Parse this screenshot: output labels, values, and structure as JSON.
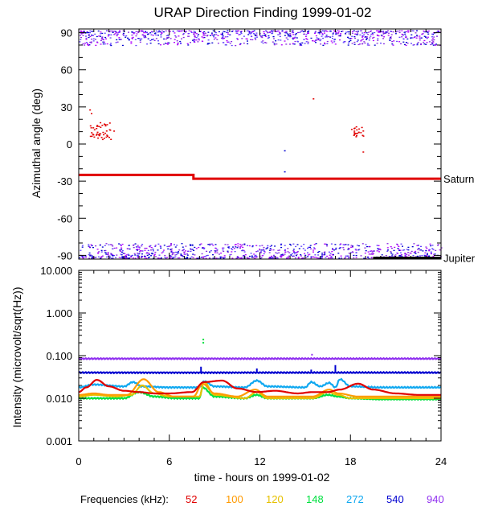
{
  "chart_data": [
    {
      "type": "scatter",
      "title": "URAP Direction Finding  1999-01-02",
      "ylabel": "Azimuthal angle (deg)",
      "xlim": [
        0,
        24
      ],
      "ylim": [
        -93,
        93
      ],
      "yticks": [
        90,
        60,
        30,
        0,
        -30,
        -60,
        -90
      ],
      "grid": false,
      "annotations": [
        {
          "label": "Saturn",
          "y": -28
        },
        {
          "label": "Jupiter",
          "y": -92
        }
      ],
      "series": [
        {
          "name": "Saturn",
          "color": "#e00000",
          "x": [
            0,
            7.6,
            7.6,
            24
          ],
          "y": [
            -25,
            -25,
            -28,
            -28
          ]
        },
        {
          "name": "Jupiter",
          "color": "#000000",
          "x": [
            19.5,
            24
          ],
          "y": [
            -92,
            -92
          ]
        },
        {
          "name": "",
          "color": "#8a2be2",
          "note": "dense scatter near +90 and -90, 0 to 24 h"
        },
        {
          "name": "",
          "color": "#e00000",
          "x": [
            0.8,
            1.0,
            1.2,
            1.4,
            1.6,
            1.8,
            2.0,
            18.2,
            18.5,
            18.8
          ],
          "y": [
            25,
            12,
            10,
            14,
            8,
            11,
            12,
            13,
            10,
            11
          ]
        }
      ]
    },
    {
      "type": "line",
      "ylabel": "Intensity (microvolt/sqrt(Hz))",
      "xlabel": "time - hours on 1999-01-02",
      "xlim": [
        0,
        24
      ],
      "xticks": [
        0,
        6,
        12,
        18,
        24
      ],
      "ylim": [
        0.001,
        10
      ],
      "yscale": "log",
      "yticks": [
        "10.000",
        "1.000",
        "0.100",
        "0.010",
        "0.001"
      ],
      "grid": false,
      "legend": {
        "title": "Frequencies (kHz):",
        "placement": "bottom",
        "entries": [
          "52",
          "100",
          "120",
          "148",
          "272",
          "540",
          "940"
        ]
      },
      "series": [
        {
          "name": "52",
          "color": "#e00000",
          "x": [
            0,
            0.5,
            1.2,
            2.0,
            3.0,
            4.0,
            5.0,
            6.0,
            7.5,
            8.3,
            9.5,
            10.5,
            11.8,
            13.0,
            14.5,
            15.5,
            16.5,
            17.3,
            18.5,
            19.5,
            21.0,
            22.5,
            24
          ],
          "y": [
            0.014,
            0.018,
            0.027,
            0.019,
            0.015,
            0.014,
            0.013,
            0.013,
            0.014,
            0.024,
            0.026,
            0.017,
            0.014,
            0.015,
            0.013,
            0.014,
            0.014,
            0.016,
            0.022,
            0.016,
            0.013,
            0.012,
            0.012
          ]
        },
        {
          "name": "100",
          "color": "#ff9a00",
          "x": [
            0,
            1.0,
            2.0,
            3.2,
            4.3,
            5.3,
            6.3,
            7.6,
            8.2,
            9.0,
            10.5,
            11.7,
            12.5,
            14.0,
            15.5,
            16.6,
            17.2,
            18.5,
            20.0,
            22.0,
            24
          ],
          "y": [
            0.012,
            0.013,
            0.012,
            0.012,
            0.028,
            0.014,
            0.011,
            0.011,
            0.022,
            0.013,
            0.011,
            0.016,
            0.011,
            0.011,
            0.011,
            0.016,
            0.013,
            0.011,
            0.011,
            0.011,
            0.011
          ]
        },
        {
          "name": "120",
          "color": "#e6c000",
          "x": [
            0,
            1.0,
            2.5,
            3.5,
            4.2,
            5.0,
            6.0,
            8.0,
            8.3,
            9.0,
            11.0,
            11.8,
            12.5,
            14.0,
            15.5,
            16.5,
            17.2,
            18.0,
            20.0,
            22.0,
            24
          ],
          "y": [
            0.011,
            0.012,
            0.011,
            0.012,
            0.02,
            0.013,
            0.011,
            0.011,
            0.024,
            0.012,
            0.01,
            0.014,
            0.01,
            0.01,
            0.01,
            0.014,
            0.012,
            0.01,
            0.01,
            0.01,
            0.01
          ]
        },
        {
          "name": "148",
          "color": "#00e040",
          "x": [
            0,
            1.5,
            3.0,
            4.0,
            5.0,
            6.5,
            8.0,
            8.2,
            9.0,
            11.0,
            11.8,
            12.5,
            14.0,
            15.5,
            16.5,
            17.2,
            18.0,
            20.0,
            22.0,
            24
          ],
          "y": [
            0.01,
            0.01,
            0.01,
            0.014,
            0.011,
            0.01,
            0.01,
            0.018,
            0.011,
            0.01,
            0.012,
            0.01,
            0.01,
            0.01,
            0.012,
            0.011,
            0.01,
            0.0095,
            0.0095,
            0.0095
          ]
        },
        {
          "name": "272",
          "color": "#10a8f0",
          "x": [
            0,
            1.0,
            3.0,
            3.6,
            4.2,
            6.0,
            8.0,
            8.3,
            9.0,
            11.0,
            11.8,
            12.5,
            15.0,
            15.4,
            16.0,
            16.6,
            17.0,
            17.3,
            18.0,
            20.0,
            22.0,
            24
          ],
          "y": [
            0.018,
            0.021,
            0.019,
            0.024,
            0.019,
            0.018,
            0.018,
            0.025,
            0.019,
            0.018,
            0.026,
            0.019,
            0.018,
            0.024,
            0.019,
            0.023,
            0.018,
            0.028,
            0.019,
            0.018,
            0.018,
            0.018
          ]
        },
        {
          "name": "540",
          "color": "#0000d0",
          "x": [
            0,
            24
          ],
          "y": [
            0.04,
            0.04
          ],
          "spikes": [
            {
              "x": 8.1,
              "y": 0.055
            },
            {
              "x": 11.8,
              "y": 0.05
            },
            {
              "x": 15.4,
              "y": 0.047
            },
            {
              "x": 17.0,
              "y": 0.06
            }
          ]
        },
        {
          "name": "940",
          "color": "#9030f0",
          "x": [
            0,
            24
          ],
          "y": [
            0.085,
            0.085
          ]
        }
      ]
    }
  ],
  "colors": {
    "52": "#e00000",
    "100": "#ff9a00",
    "120": "#e6c000",
    "148": "#00e040",
    "272": "#10a8f0",
    "540": "#0000d0",
    "940": "#9030f0"
  }
}
